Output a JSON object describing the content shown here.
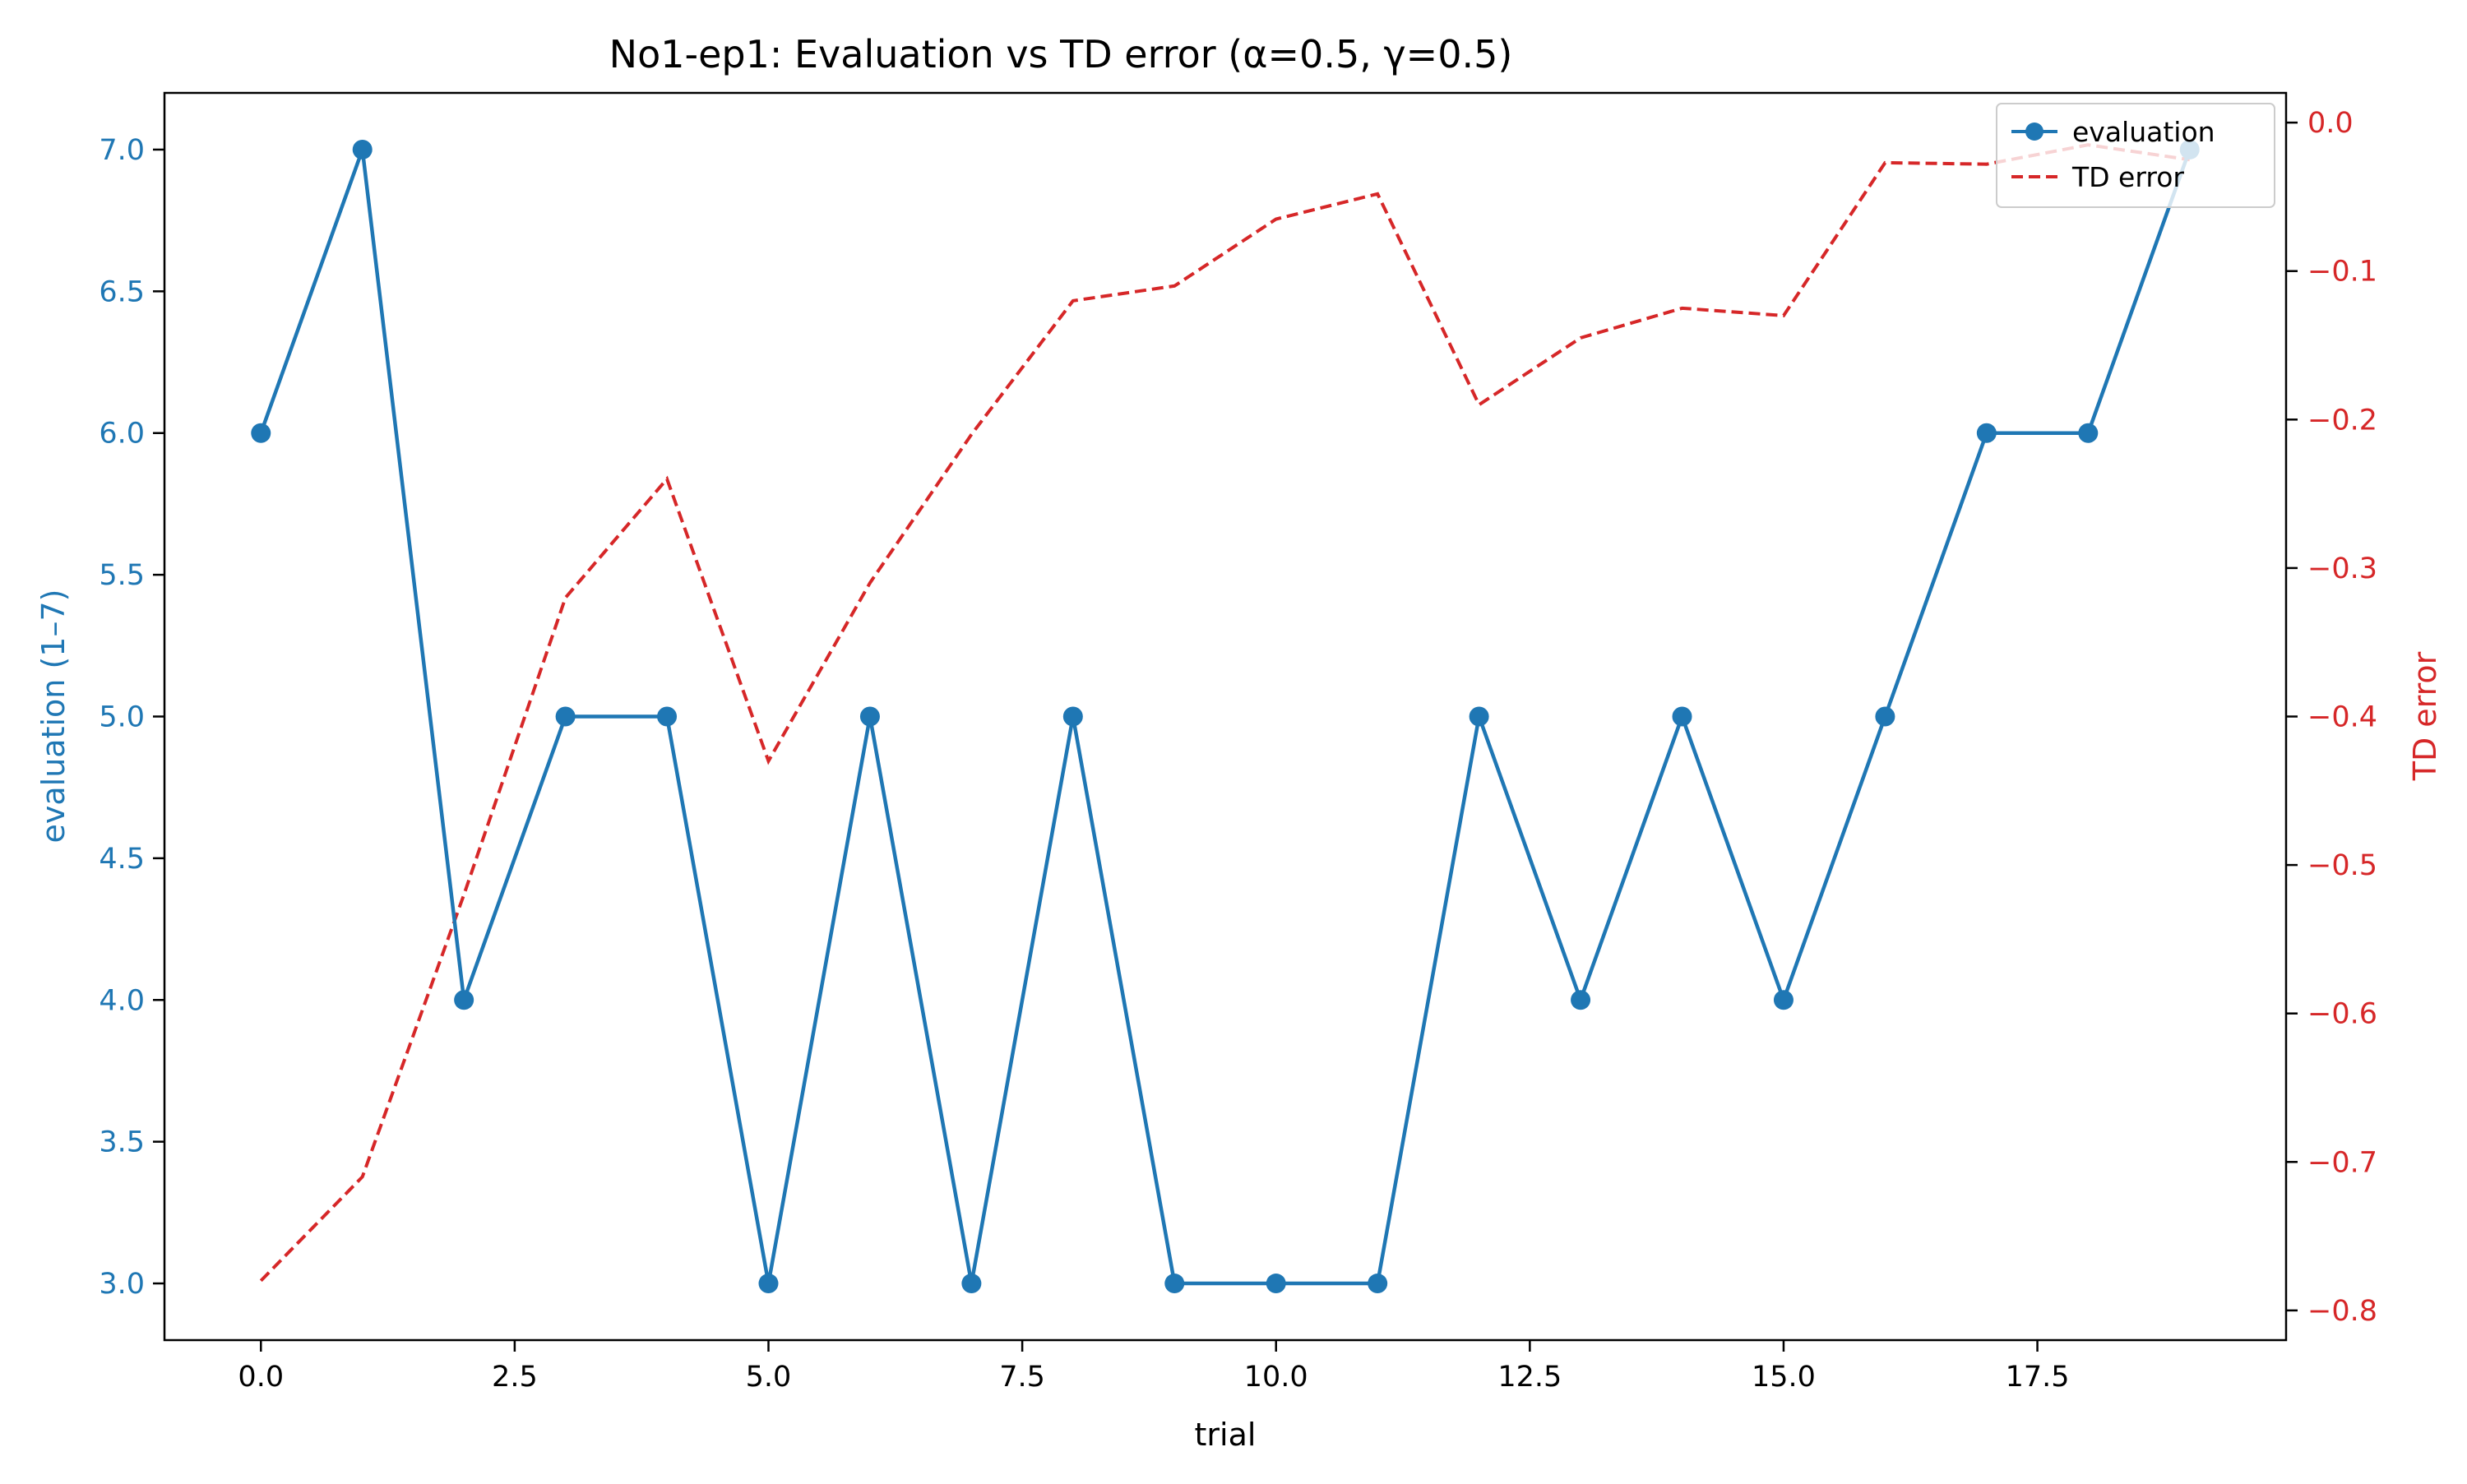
{
  "chart_data": {
    "type": "line",
    "title": "No1-ep1: Evaluation vs TD error (α=0.5, γ=0.5)",
    "xlabel": "trial",
    "ylabel_left": "evaluation (1–7)",
    "ylabel_right": "TD error",
    "xlim": [
      -0.95,
      19.95
    ],
    "ylim_left": [
      2.8,
      7.2
    ],
    "ylim_right": [
      -0.82,
      0.02
    ],
    "x_ticks": [
      0.0,
      2.5,
      5.0,
      7.5,
      10.0,
      12.5,
      15.0,
      17.5
    ],
    "x_tick_labels": [
      "0.0",
      "2.5",
      "5.0",
      "7.5",
      "10.0",
      "12.5",
      "15.0",
      "17.5"
    ],
    "y_left_ticks": [
      3.0,
      3.5,
      4.0,
      4.5,
      5.0,
      5.5,
      6.0,
      6.5,
      7.0
    ],
    "y_left_tick_labels": [
      "3.0",
      "3.5",
      "4.0",
      "4.5",
      "5.0",
      "5.5",
      "6.0",
      "6.5",
      "7.0"
    ],
    "y_right_ticks": [
      -0.8,
      -0.7,
      -0.6,
      -0.5,
      -0.4,
      -0.3,
      -0.2,
      -0.1,
      0.0
    ],
    "y_right_tick_labels": [
      "−0.8",
      "−0.7",
      "−0.6",
      "−0.5",
      "−0.4",
      "−0.3",
      "−0.2",
      "−0.1",
      "0.0"
    ],
    "x": [
      0,
      1,
      2,
      3,
      4,
      5,
      6,
      7,
      8,
      9,
      10,
      11,
      12,
      13,
      14,
      15,
      16,
      17,
      18,
      19
    ],
    "series": [
      {
        "name": "evaluation",
        "axis": "left",
        "color": "#1f77b4",
        "style": "solid-with-markers",
        "values": [
          6,
          7,
          4,
          5,
          5,
          3,
          5,
          3,
          5,
          3,
          3,
          3,
          5,
          4,
          5,
          4,
          5,
          6,
          6,
          7
        ]
      },
      {
        "name": "TD error",
        "axis": "right",
        "color": "#d62728",
        "style": "dashed",
        "values": [
          -0.78,
          -0.71,
          -0.52,
          -0.32,
          -0.24,
          -0.43,
          -0.31,
          -0.21,
          -0.12,
          -0.11,
          -0.065,
          -0.048,
          -0.19,
          -0.145,
          -0.125,
          -0.13,
          -0.027,
          -0.028,
          -0.015,
          -0.025
        ]
      }
    ],
    "grid": false,
    "legend_position": "top-right"
  }
}
